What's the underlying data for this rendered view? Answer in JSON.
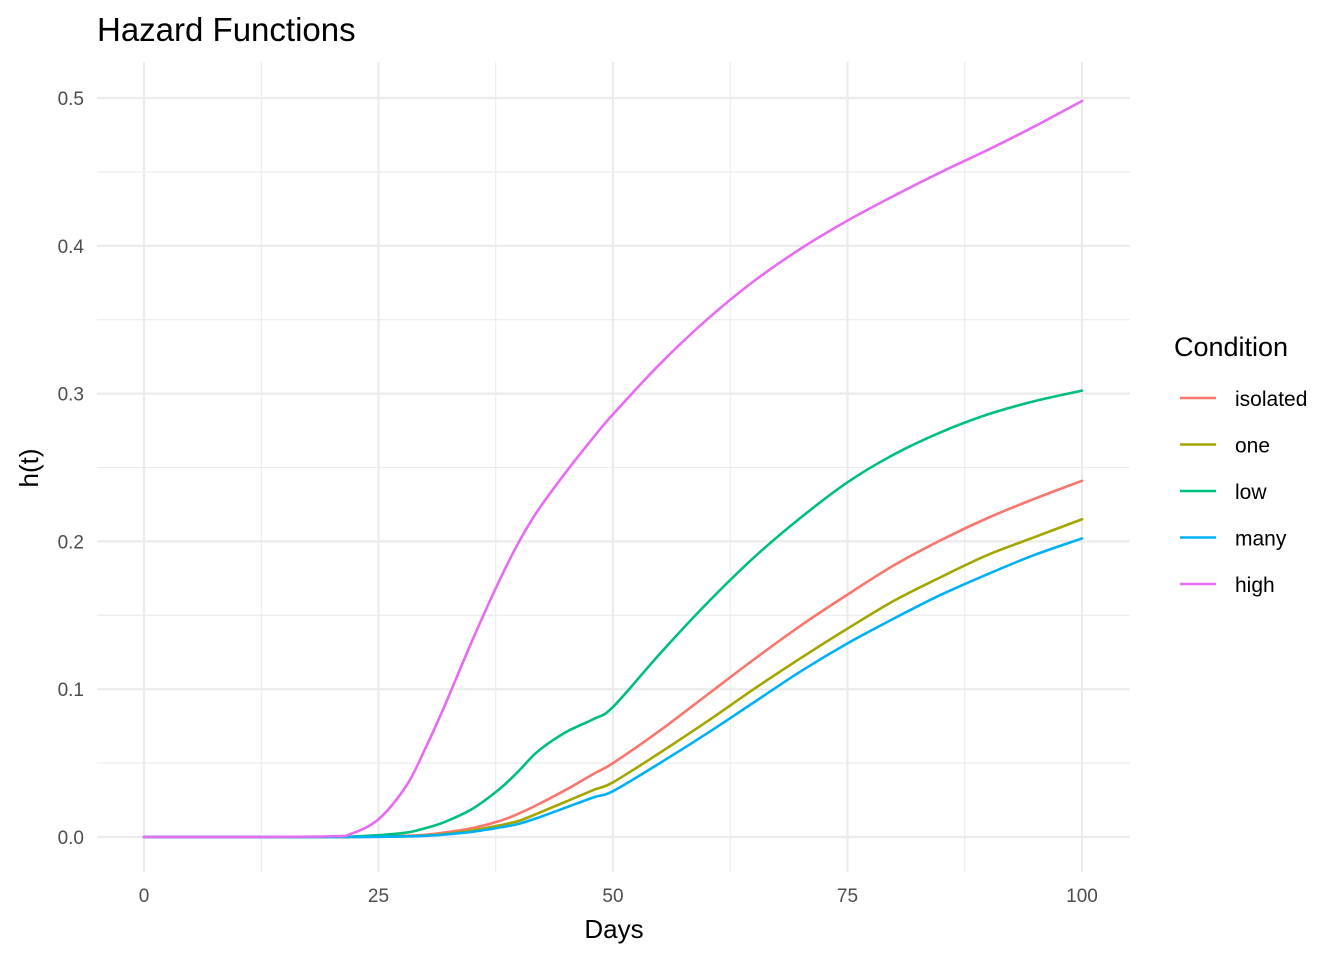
{
  "chart_data": {
    "type": "line",
    "title": "Hazard Functions",
    "xlabel": "Days",
    "ylabel": "h(t)",
    "xlim": [
      0,
      100
    ],
    "ylim": [
      0,
      0.5
    ],
    "x_ticks": [
      "0",
      "25",
      "50",
      "75",
      "100"
    ],
    "y_ticks": [
      "0.0",
      "0.1",
      "0.2",
      "0.3",
      "0.4",
      "0.5"
    ],
    "grid": true,
    "legend": {
      "title": "Condition",
      "position": "right"
    },
    "x": [
      0,
      10,
      20,
      22,
      25,
      28,
      30,
      32,
      35,
      38,
      40,
      42,
      45,
      48,
      50,
      55,
      60,
      65,
      70,
      75,
      80,
      85,
      90,
      95,
      100
    ],
    "series": [
      {
        "name": "isolated",
        "color": "#F8766D",
        "values": [
          0,
          0,
          0,
          0,
          0.0003,
          0.0008,
          0.0015,
          0.003,
          0.006,
          0.011,
          0.016,
          0.022,
          0.032,
          0.043,
          0.05,
          0.072,
          0.096,
          0.12,
          0.143,
          0.164,
          0.184,
          0.201,
          0.216,
          0.229,
          0.241
        ]
      },
      {
        "name": "one",
        "color": "#A3A500",
        "values": [
          0,
          0,
          0,
          0,
          0.0002,
          0.0005,
          0.001,
          0.002,
          0.0045,
          0.008,
          0.011,
          0.016,
          0.024,
          0.032,
          0.037,
          0.057,
          0.078,
          0.1,
          0.121,
          0.141,
          0.16,
          0.176,
          0.191,
          0.203,
          0.215
        ]
      },
      {
        "name": "low",
        "color": "#00BF7D",
        "values": [
          0,
          0,
          0,
          0.0002,
          0.0012,
          0.003,
          0.006,
          0.01,
          0.019,
          0.033,
          0.045,
          0.058,
          0.071,
          0.08,
          0.088,
          0.124,
          0.158,
          0.189,
          0.216,
          0.24,
          0.259,
          0.274,
          0.286,
          0.295,
          0.302
        ]
      },
      {
        "name": "many",
        "color": "#00B0F6",
        "values": [
          0,
          0,
          0,
          0,
          0.0001,
          0.0004,
          0.0008,
          0.0016,
          0.0035,
          0.0065,
          0.009,
          0.013,
          0.02,
          0.027,
          0.031,
          0.05,
          0.07,
          0.091,
          0.112,
          0.131,
          0.148,
          0.164,
          0.178,
          0.191,
          0.202
        ]
      },
      {
        "name": "high",
        "color": "#E76BF3",
        "values": [
          0,
          0,
          0.0005,
          0.002,
          0.012,
          0.035,
          0.06,
          0.088,
          0.133,
          0.175,
          0.2,
          0.221,
          0.247,
          0.271,
          0.286,
          0.32,
          0.35,
          0.376,
          0.398,
          0.417,
          0.434,
          0.45,
          0.465,
          0.481,
          0.498
        ]
      }
    ]
  }
}
